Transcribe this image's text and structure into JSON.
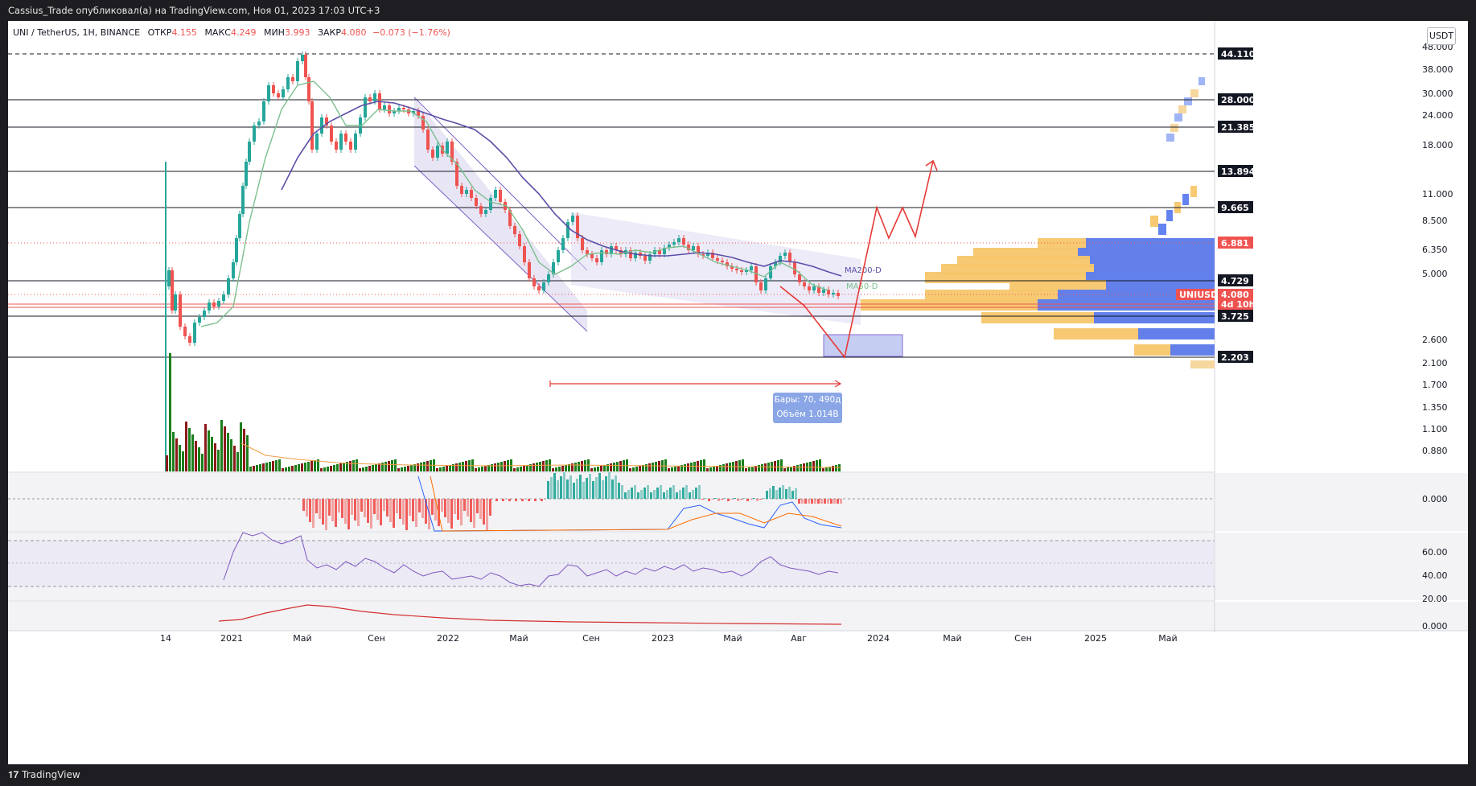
{
  "header": {
    "publisher_text": "Cassius_Trade опубликовал(а) на TradingView.com, Ноя 01, 2023 17:03 UTC+3"
  },
  "legend": {
    "symbol": "UNI / TetherUS, 1H, BINANCE",
    "open_label": "ОТКР",
    "open": "4.155",
    "high_label": "МАКС",
    "high": "4.249",
    "low_label": "МИН",
    "low": "3.993",
    "close_label": "ЗАКР",
    "close": "4.080",
    "change": "−0.073 (−1.76%)"
  },
  "currency_button": "USDT",
  "price_scale": {
    "ticks": [
      "48.000",
      "38.000",
      "30.000",
      "24.000",
      "18.000",
      "11.000",
      "8.500",
      "6.350",
      "5.000",
      "2.600",
      "2.100",
      "1.700",
      "1.350",
      "1.100",
      "0.880"
    ]
  },
  "levels": [
    {
      "label": "44.110",
      "style": "dashed"
    },
    {
      "label": "28.000",
      "style": "solid"
    },
    {
      "label": "21.385",
      "style": "solid"
    },
    {
      "label": "13.894",
      "style": "solid"
    },
    {
      "label": "9.665",
      "style": "solid"
    },
    {
      "label": "6.881",
      "style": "red-dotted"
    },
    {
      "label": "4.729",
      "style": "solid"
    },
    {
      "label": "3.725",
      "style": "solid"
    },
    {
      "label": "2.203",
      "style": "solid"
    }
  ],
  "current_price": {
    "symbol": "UNIUSDT",
    "price": "4.080",
    "countdown": "4d 10h",
    "color": "#ef5350"
  },
  "moving_averages": [
    {
      "name": "MA200-D",
      "color": "#5b4fa8"
    },
    {
      "name": "MA50-D",
      "color": "#7cbf8e"
    }
  ],
  "measure": {
    "bars": "Бары: 70, 490д",
    "volume": "Объём 1.014B"
  },
  "macd_scale": {
    "ticks": [
      "0.000"
    ]
  },
  "rsi_scale": {
    "ticks": [
      "60.00",
      "40.00",
      "20.00"
    ]
  },
  "bottom_scale": {
    "ticks": [
      "0.000"
    ]
  },
  "time_axis": {
    "labels": [
      "14",
      "2021",
      "Май",
      "Сен",
      "2022",
      "Май",
      "Сен",
      "2023",
      "Май",
      "Авг",
      "2024",
      "Май",
      "Сен",
      "2025",
      "Май"
    ]
  },
  "colors": {
    "up": "#26a69a",
    "down": "#ef5350",
    "volume_up": "#1b7f1b",
    "volume_down": "#8b1a1a"
  },
  "footer": {
    "brand": "TradingView"
  }
}
